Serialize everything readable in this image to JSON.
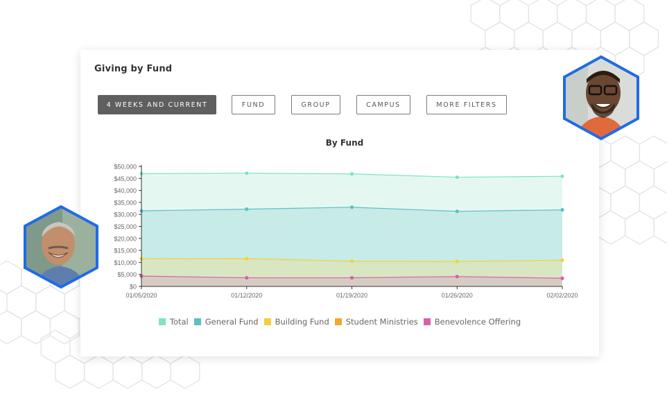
{
  "card": {
    "title": "Giving by Fund"
  },
  "filters": [
    {
      "label": "4 WEEKS AND CURRENT",
      "active": true
    },
    {
      "label": "FUND",
      "active": false
    },
    {
      "label": "GROUP",
      "active": false
    },
    {
      "label": "CAMPUS",
      "active": false
    },
    {
      "label": "MORE FILTERS",
      "active": false
    }
  ],
  "colors": {
    "total": "#7fe3c4",
    "general_fund": "#5cbfc6",
    "building_fund": "#f5cf3a",
    "student_ministries": "#f0a830",
    "benevolence_offering": "#d95fa8",
    "avatar_border": "#1f6be8"
  },
  "chart_data": {
    "type": "area",
    "title": "By Fund",
    "x": [
      "01/05/2020",
      "01/12/2020",
      "01/19/2020",
      "01/26/2020",
      "02/02/2020"
    ],
    "yticks": [
      "$50,000",
      "$45,000",
      "$40,000",
      "$35,000",
      "$30,000",
      "$25,000",
      "$20,000",
      "$15,000",
      "$10,000",
      "$5,000",
      "$0"
    ],
    "ylim": [
      0,
      50000
    ],
    "series": [
      {
        "name": "Total",
        "values": [
          47000,
          47200,
          46900,
          45500,
          45900
        ]
      },
      {
        "name": "General Fund",
        "values": [
          31500,
          32200,
          33000,
          31300,
          31900
        ]
      },
      {
        "name": "Building Fund",
        "values": [
          11500,
          11600,
          10500,
          10400,
          10900
        ]
      },
      {
        "name": "Student Ministries",
        "values": [
          0,
          0,
          0,
          0,
          0
        ]
      },
      {
        "name": "Benevolence Offering",
        "values": [
          4300,
          3600,
          3600,
          4100,
          3400
        ]
      }
    ]
  },
  "legend": [
    "Total",
    "General Fund",
    "Building Fund",
    "Student Ministries",
    "Benevolence Offering"
  ]
}
